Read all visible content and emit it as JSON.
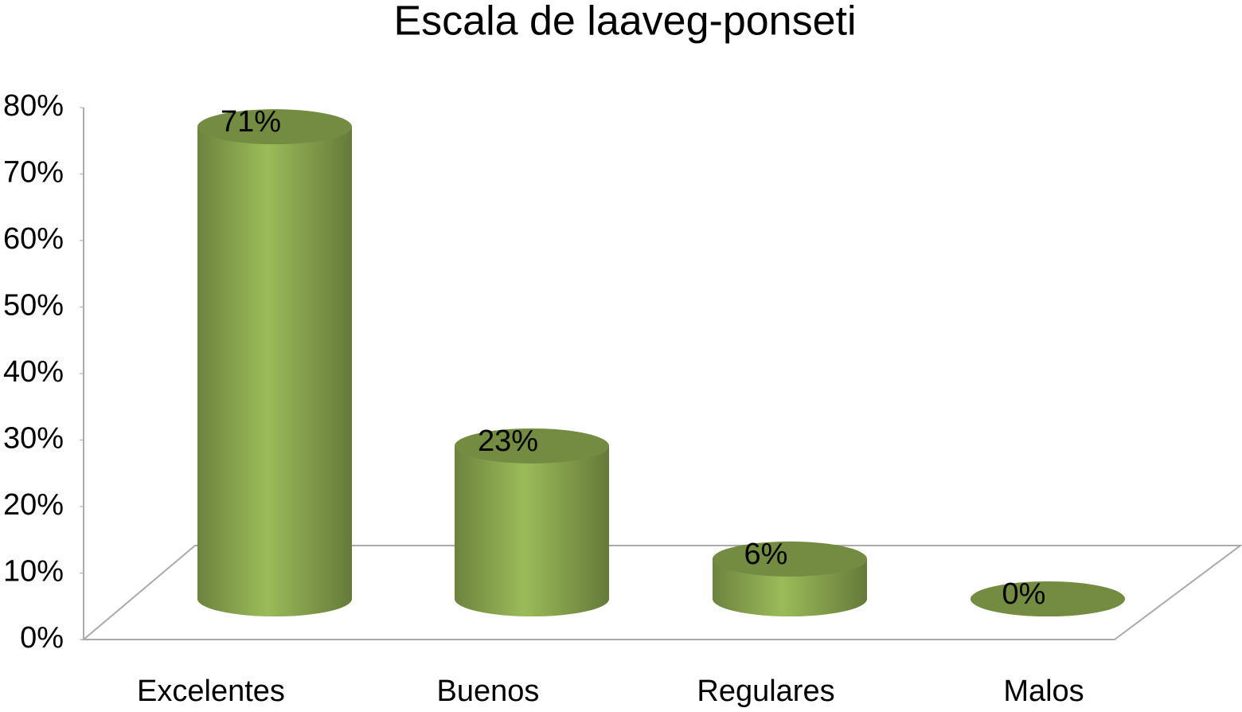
{
  "chart_data": {
    "type": "bar3d",
    "title": "Escala de laaveg-ponseti",
    "categories": [
      "Excelentes",
      "Buenos",
      "Regulares",
      "Malos"
    ],
    "values": [
      71,
      23,
      6,
      0
    ],
    "value_labels": [
      "71%",
      "23%",
      "6%",
      "0%"
    ],
    "color": "#9bbb59",
    "ylim": [
      0,
      80
    ],
    "yticks": [
      {
        "value": 0,
        "label": "0%"
      },
      {
        "value": 10,
        "label": "10%"
      },
      {
        "value": 20,
        "label": "20%"
      },
      {
        "value": 30,
        "label": "30%"
      },
      {
        "value": 40,
        "label": "40%"
      },
      {
        "value": 50,
        "label": "50%"
      },
      {
        "value": 60,
        "label": "60%"
      },
      {
        "value": 70,
        "label": "70%"
      },
      {
        "value": 80,
        "label": "80%"
      }
    ],
    "grid": false
  }
}
